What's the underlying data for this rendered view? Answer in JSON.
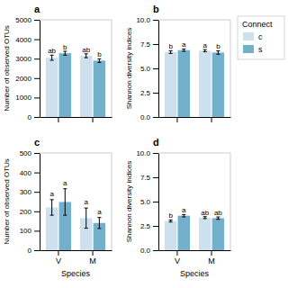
{
  "chart_data": [
    {
      "type": "bar",
      "title": "a",
      "ylabel": "Number of observed OTUs",
      "categories": [
        null,
        null
      ],
      "ylim": [
        0,
        5000
      ],
      "yticks": [
        0,
        1000,
        2000,
        3000,
        4000,
        5000
      ],
      "grid": false,
      "series": [
        {
          "name": "c",
          "color": "#cde0ed",
          "values": [
            3050,
            3150
          ],
          "errors": [
            130,
            100
          ],
          "letters": [
            "ab",
            "ab"
          ],
          "letter_y": [
            3230,
            3300
          ]
        },
        {
          "name": "s",
          "color": "#72b0cc",
          "values": [
            3280,
            2900
          ],
          "errors": [
            100,
            90
          ],
          "letters": [
            "b",
            "b"
          ],
          "letter_y": [
            3430,
            3040
          ]
        }
      ]
    },
    {
      "type": "bar",
      "title": "b",
      "ylabel": "Shannon diversity indices",
      "categories": [
        null,
        null
      ],
      "ylim": [
        0,
        10
      ],
      "yticks": [
        {
          "value": 0,
          "label": "0.0"
        },
        2.5,
        {
          "value": 5,
          "label": "5.0"
        },
        7.5,
        {
          "value": 10,
          "label": "10.0"
        }
      ],
      "grid": false,
      "legend": "right",
      "legend_title": "Connect",
      "series": [
        {
          "name": "c",
          "color": "#cde0ed",
          "values": [
            6.68,
            6.82
          ],
          "errors": [
            0.14,
            0.11
          ],
          "letters": [
            "b",
            "a"
          ],
          "letter_y": [
            6.92,
            7.03
          ]
        },
        {
          "name": "s",
          "color": "#72b0cc",
          "values": [
            6.88,
            6.63
          ],
          "errors": [
            0.12,
            0.17
          ],
          "letters": [
            "a",
            "b"
          ],
          "letter_y": [
            7.1,
            6.9
          ]
        }
      ]
    },
    {
      "type": "bar",
      "title": "c",
      "ylabel": "Number of observed OTUs",
      "xlabel": "Species",
      "categories": [
        "V",
        "M"
      ],
      "ylim": [
        0,
        500
      ],
      "yticks": [
        0,
        100,
        200,
        300,
        400,
        500
      ],
      "grid": false,
      "series": [
        {
          "name": "c",
          "color": "#cde0ed",
          "values": [
            220,
            165
          ],
          "errors": [
            40,
            52
          ],
          "letters": [
            "a",
            "a"
          ],
          "letter_y": [
            275,
            230
          ]
        },
        {
          "name": "s",
          "color": "#72b0cc",
          "values": [
            248,
            140
          ],
          "errors": [
            68,
            28
          ],
          "letters": [
            "a",
            "a"
          ],
          "letter_y": [
            330,
            180
          ]
        }
      ]
    },
    {
      "type": "bar",
      "title": "d",
      "ylabel": "Shannon diversity indices",
      "xlabel": "Species",
      "categories": [
        "V",
        "M"
      ],
      "ylim": [
        0,
        10
      ],
      "yticks": [
        {
          "value": 0,
          "label": "0.0"
        },
        2.5,
        {
          "value": 5,
          "label": "5.0"
        },
        7.5,
        {
          "value": 10,
          "label": "10.0"
        }
      ],
      "grid": false,
      "series": [
        {
          "name": "c",
          "color": "#cde0ed",
          "values": [
            3.0,
            3.35
          ],
          "errors": [
            0.1,
            0.1
          ],
          "letters": [
            "b",
            "ab"
          ],
          "letter_y": [
            3.2,
            3.55
          ]
        },
        {
          "name": "s",
          "color": "#72b0cc",
          "values": [
            3.55,
            3.3
          ],
          "errors": [
            0.12,
            0.12
          ],
          "letters": [
            "a",
            "ab"
          ],
          "letter_y": [
            3.77,
            3.52
          ]
        }
      ]
    }
  ]
}
